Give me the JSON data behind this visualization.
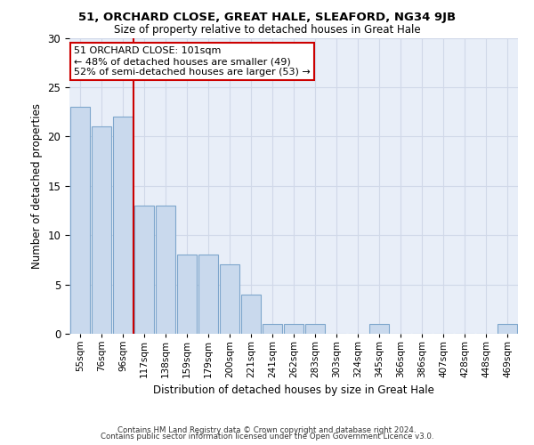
{
  "title1": "51, ORCHARD CLOSE, GREAT HALE, SLEAFORD, NG34 9JB",
  "title2": "Size of property relative to detached houses in Great Hale",
  "xlabel": "Distribution of detached houses by size in Great Hale",
  "ylabel": "Number of detached properties",
  "categories": [
    "55sqm",
    "76sqm",
    "96sqm",
    "117sqm",
    "138sqm",
    "159sqm",
    "179sqm",
    "200sqm",
    "221sqm",
    "241sqm",
    "262sqm",
    "283sqm",
    "303sqm",
    "324sqm",
    "345sqm",
    "366sqm",
    "386sqm",
    "407sqm",
    "428sqm",
    "448sqm",
    "469sqm"
  ],
  "values": [
    23,
    21,
    22,
    13,
    13,
    8,
    8,
    7,
    4,
    1,
    1,
    1,
    0,
    0,
    1,
    0,
    0,
    0,
    0,
    0,
    1
  ],
  "bar_color": "#c9d9ed",
  "bar_edge_color": "#7ea6cc",
  "vline_color": "#cc0000",
  "annotation_text": "51 ORCHARD CLOSE: 101sqm\n← 48% of detached houses are smaller (49)\n52% of semi-detached houses are larger (53) →",
  "annotation_box_color": "#ffffff",
  "annotation_box_edge": "#cc0000",
  "footer1": "Contains HM Land Registry data © Crown copyright and database right 2024.",
  "footer2": "Contains public sector information licensed under the Open Government Licence v3.0.",
  "ylim": [
    0,
    30
  ],
  "yticks": [
    0,
    5,
    10,
    15,
    20,
    25,
    30
  ],
  "grid_color": "#d0d8e8",
  "bg_color": "#e8eef8"
}
